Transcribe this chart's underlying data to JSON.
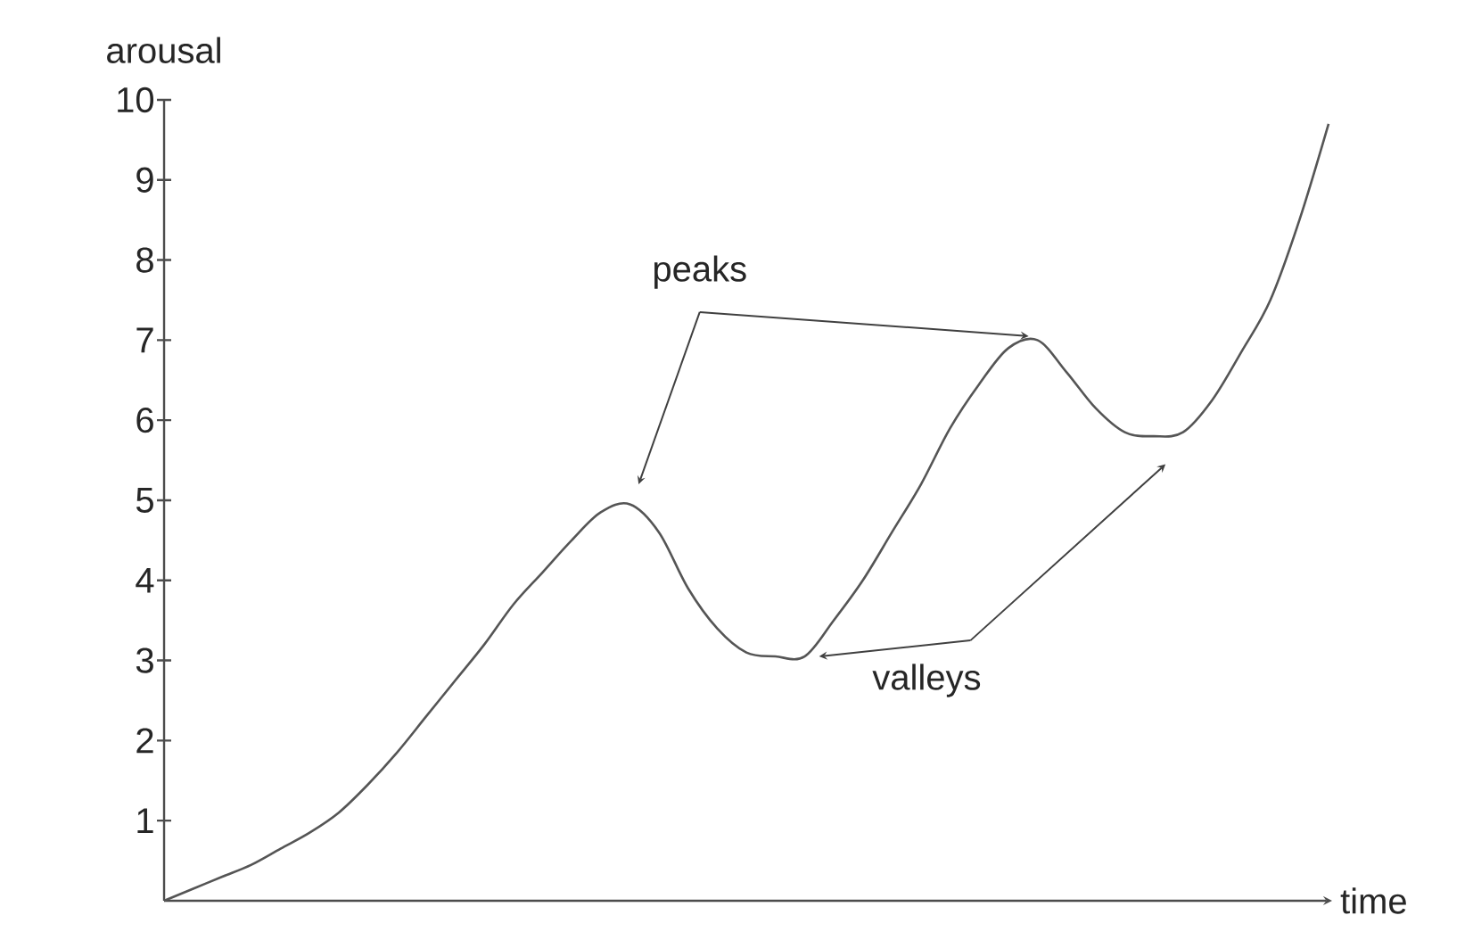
{
  "chart_data": {
    "type": "line",
    "xlabel": "time",
    "ylabel": "arousal",
    "categories": [
      null,
      null,
      null,
      null,
      null,
      null,
      null,
      null,
      null,
      null,
      null,
      null,
      null,
      null,
      null,
      null,
      null,
      null,
      null,
      null,
      null,
      null,
      null,
      null,
      null,
      null,
      null,
      null,
      null,
      null,
      null,
      null,
      null,
      null,
      null,
      null,
      null,
      null,
      null,
      null,
      null
    ],
    "series": [
      {
        "color": "#555555",
        "values": [
          0,
          0.15,
          0.3,
          0.45,
          0.65,
          0.85,
          1.1,
          1.45,
          1.85,
          2.3,
          2.75,
          3.2,
          3.7,
          4.1,
          4.5,
          4.85,
          4.95,
          4.6,
          3.9,
          3.4,
          3.1,
          3.05,
          3.05,
          3.5,
          4.0,
          4.6,
          5.2,
          5.9,
          6.45,
          6.9,
          7.0,
          6.6,
          6.15,
          5.85,
          5.8,
          5.85,
          6.25,
          6.85,
          7.5,
          8.5,
          9.7
        ]
      }
    ],
    "ylim": [
      0,
      10
    ],
    "yticks": [
      1,
      2,
      3,
      4,
      5,
      6,
      7,
      8,
      9,
      10
    ],
    "annotations": [
      "peaks",
      "valleys"
    ],
    "line_style": "solid",
    "marker": "none"
  }
}
